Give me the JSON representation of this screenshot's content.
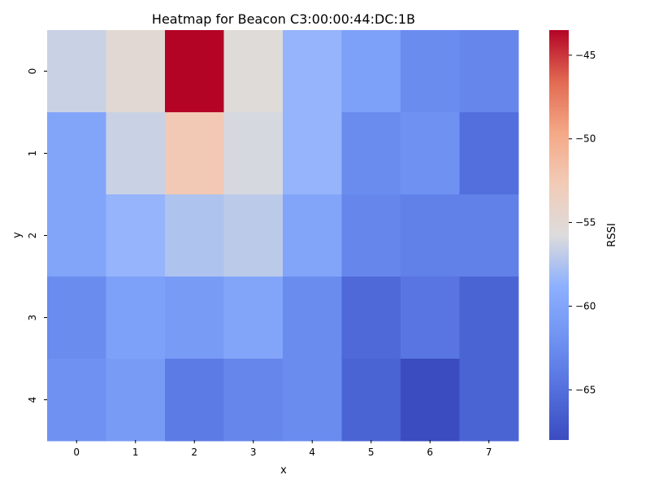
{
  "chart_data": {
    "type": "heatmap",
    "title": "Heatmap for Beacon C3:00:00:44:DC:1B",
    "xlabel": "x",
    "ylabel": "y",
    "colorbar_label": "RSSI",
    "x_ticks": [
      "0",
      "1",
      "2",
      "3",
      "4",
      "5",
      "6",
      "7"
    ],
    "y_ticks": [
      "0",
      "1",
      "2",
      "3",
      "4"
    ],
    "colorbar_ticks": [
      {
        "value": -45,
        "label": "−45"
      },
      {
        "value": -50,
        "label": "−50"
      },
      {
        "value": -55,
        "label": "−55"
      },
      {
        "value": -60,
        "label": "−60"
      },
      {
        "value": -65,
        "label": "−65"
      }
    ],
    "vmin": -68,
    "vmax": -43.5,
    "colormap": "coolwarm",
    "values": [
      [
        -56.5,
        -55.0,
        -43.5,
        -55.5,
        -58.5,
        -60.5,
        -62.5,
        -63.0
      ],
      [
        -60.0,
        -56.5,
        -52.5,
        -56.0,
        -58.5,
        -62.5,
        -62.0,
        -65.0
      ],
      [
        -60.0,
        -58.5,
        -57.5,
        -57.0,
        -60.0,
        -63.0,
        -63.5,
        -63.5
      ],
      [
        -62.5,
        -60.5,
        -61.0,
        -60.0,
        -62.5,
        -65.5,
        -64.5,
        -66.0
      ],
      [
        -62.0,
        -61.0,
        -64.0,
        -63.0,
        -62.5,
        -66.0,
        -68.0,
        -66.0
      ]
    ]
  }
}
